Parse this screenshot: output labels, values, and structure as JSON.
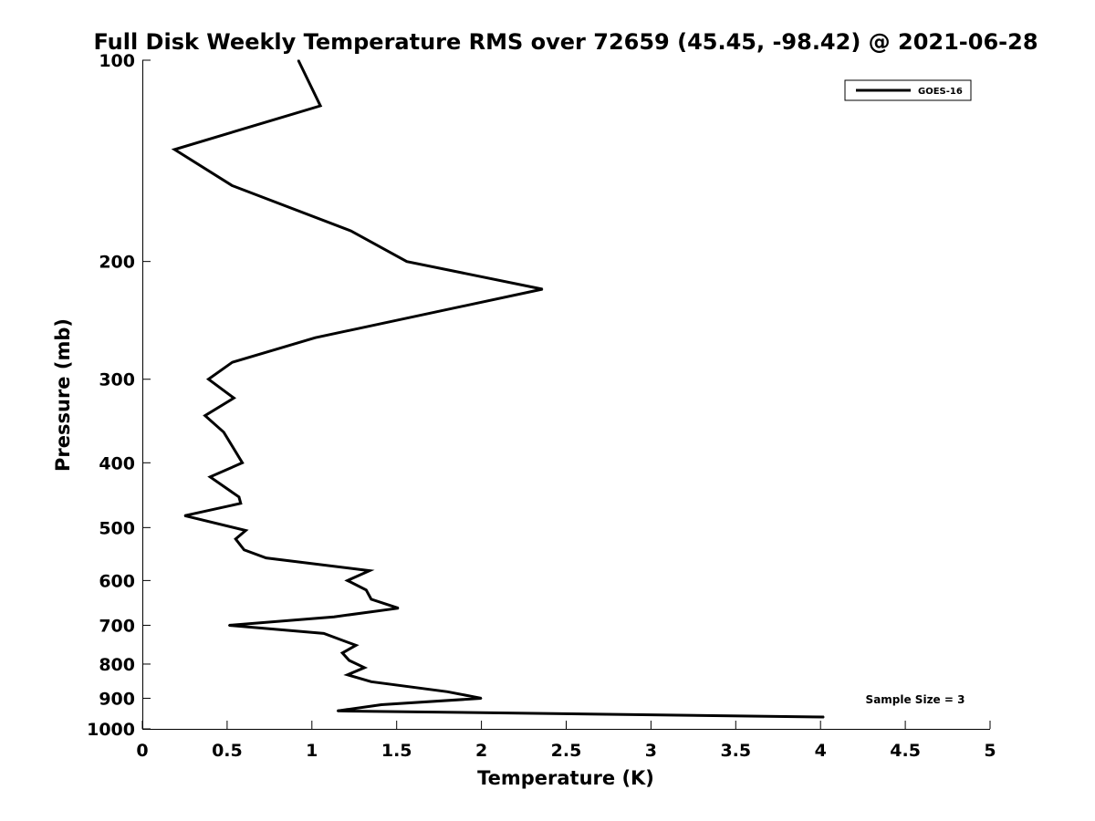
{
  "chart_data": {
    "type": "line",
    "title": "Full Disk Weekly Temperature RMS over 72659 (45.45, -98.42) @ 2021-06-28",
    "xlabel": "Temperature (K)",
    "ylabel": "Pressure (mb)",
    "xlim": [
      0,
      5
    ],
    "ylim": [
      1000,
      100
    ],
    "yscale": "log",
    "y_reversed": true,
    "x_ticks": [
      {
        "value": 0,
        "label": "0"
      },
      {
        "value": 0.5,
        "label": "0.5"
      },
      {
        "value": 1,
        "label": "1"
      },
      {
        "value": 1.5,
        "label": "1.5"
      },
      {
        "value": 2,
        "label": "2"
      },
      {
        "value": 2.5,
        "label": "2.5"
      },
      {
        "value": 3,
        "label": "3"
      },
      {
        "value": 3.5,
        "label": "3.5"
      },
      {
        "value": 4,
        "label": "4"
      },
      {
        "value": 4.5,
        "label": "4.5"
      },
      {
        "value": 5,
        "label": "5"
      }
    ],
    "y_ticks": [
      {
        "value": 100,
        "label": "100"
      },
      {
        "value": 200,
        "label": "200"
      },
      {
        "value": 300,
        "label": "300"
      },
      {
        "value": 400,
        "label": "400"
      },
      {
        "value": 500,
        "label": "500"
      },
      {
        "value": 600,
        "label": "600"
      },
      {
        "value": 700,
        "label": "700"
      },
      {
        "value": 800,
        "label": "800"
      },
      {
        "value": 900,
        "label": "900"
      },
      {
        "value": 1000,
        "label": "1000"
      }
    ],
    "grid": false,
    "legend": {
      "placement": "top-right",
      "entries": [
        "GOES-16"
      ]
    },
    "annotation": {
      "text": "Sample Size = 3",
      "placement": "bottom-right"
    },
    "series": [
      {
        "name": "GOES-16",
        "color": "#000000",
        "x": [
          0.92,
          1.05,
          0.19,
          0.53,
          1.23,
          1.56,
          2.36,
          1.02,
          0.53,
          0.39,
          0.54,
          0.37,
          0.48,
          0.59,
          0.4,
          0.57,
          0.58,
          0.25,
          0.61,
          0.55,
          0.6,
          0.73,
          1.34,
          1.21,
          1.32,
          1.35,
          1.51,
          1.13,
          0.51,
          1.07,
          1.26,
          1.18,
          1.22,
          1.31,
          1.21,
          1.35,
          1.8,
          2.0,
          1.41,
          1.15,
          4.02
        ],
        "y": [
          100,
          117,
          136,
          154,
          180,
          200,
          220,
          260,
          283,
          300,
          320,
          340,
          360,
          400,
          420,
          450,
          460,
          480,
          505,
          520,
          540,
          555,
          580,
          600,
          620,
          640,
          660,
          680,
          700,
          720,
          750,
          770,
          790,
          810,
          830,
          850,
          880,
          900,
          920,
          940,
          960
        ]
      }
    ]
  }
}
